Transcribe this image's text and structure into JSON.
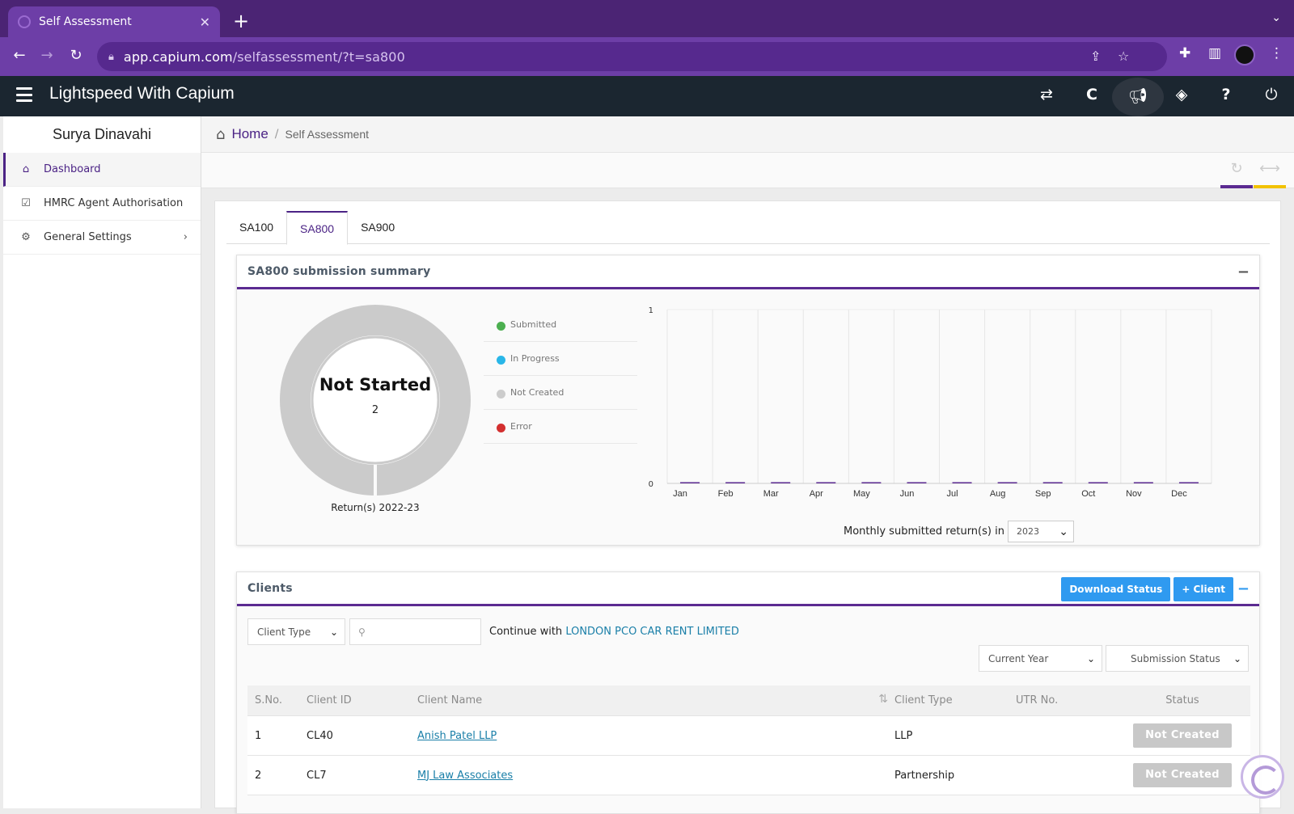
{
  "browser": {
    "tab_title": "Self Assessment",
    "url_domain": "app.capium.com",
    "url_path": "/selfassessment/?t=sa800"
  },
  "header": {
    "app_title": "Lightspeed With Capium"
  },
  "sidebar": {
    "user_name": "Surya Dinavahi",
    "items": [
      {
        "label": "Dashboard",
        "icon": "home-icon"
      },
      {
        "label": "HMRC Agent Authorisation",
        "icon": "checkbox-icon"
      },
      {
        "label": "General Settings",
        "icon": "gears-icon"
      }
    ]
  },
  "breadcrumb": {
    "home": "Home",
    "current": "Self Assessment"
  },
  "tabs": [
    "SA100",
    "SA800",
    "SA900"
  ],
  "summary": {
    "title": "SA800 submission summary",
    "donut_status": "Not Started",
    "donut_count": "2",
    "caption": "Return(s) 2022-23",
    "legend": [
      {
        "label": "Submitted",
        "color": "#4caf50"
      },
      {
        "label": "In Progress",
        "color": "#29b6e8"
      },
      {
        "label": "Not Created",
        "color": "#cccccc"
      },
      {
        "label": "Error",
        "color": "#d32f2f"
      }
    ],
    "monthly_label": "Monthly submitted return(s) in",
    "year": "2023"
  },
  "chart_data": {
    "type": "bar",
    "categories": [
      "Jan",
      "Feb",
      "Mar",
      "Apr",
      "May",
      "Jun",
      "Jul",
      "Aug",
      "Sep",
      "Oct",
      "Nov",
      "Dec"
    ],
    "values": [
      0,
      0,
      0,
      0,
      0,
      0,
      0,
      0,
      0,
      0,
      0,
      0
    ],
    "ylim": [
      0,
      1
    ],
    "yticks": [
      "0",
      "1"
    ],
    "title": "",
    "xlabel": "",
    "ylabel": ""
  },
  "clients": {
    "title": "Clients",
    "download_label": "Download Status",
    "add_label": "+ Client",
    "client_type_placeholder": "Client Type",
    "continue_text": "Continue with",
    "continue_link": "LONDON PCO CAR RENT LIMITED",
    "year_filter": "Current Year",
    "status_filter": "Submission Status",
    "columns": [
      "S.No.",
      "Client ID",
      "Client Name",
      "Client Type",
      "UTR No.",
      "Status"
    ],
    "rows": [
      {
        "sno": "1",
        "id": "CL40",
        "name": "Anish Patel LLP",
        "type": "LLP",
        "utr": "",
        "status": "Not Created"
      },
      {
        "sno": "2",
        "id": "CL7",
        "name": "MJ Law Associates",
        "type": "Partnership",
        "utr": "",
        "status": "Not Created"
      }
    ]
  }
}
